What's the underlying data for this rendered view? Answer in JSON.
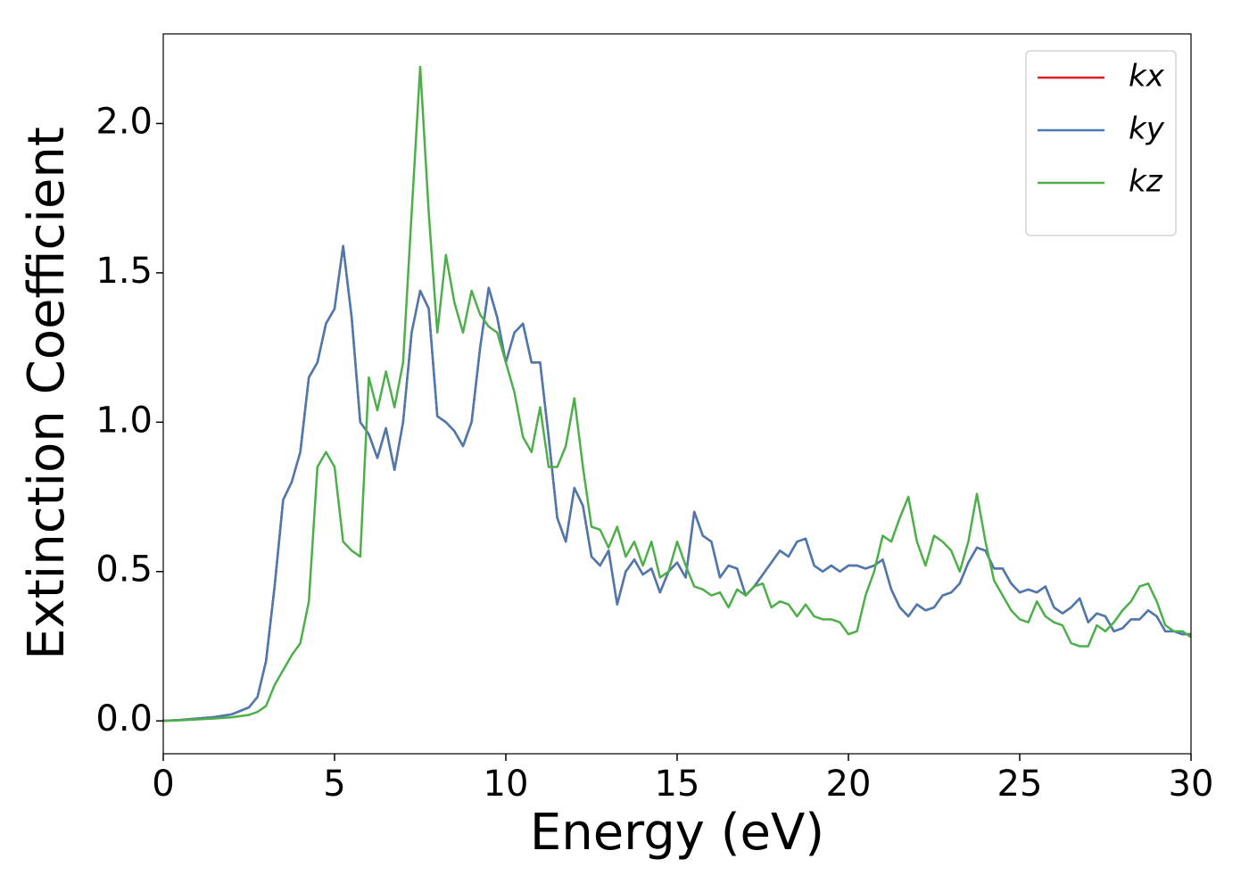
{
  "chart_data": {
    "type": "line",
    "xlabel": "Energy (eV)",
    "ylabel": "Extinction Coefficient",
    "xlim": [
      0,
      30
    ],
    "ylim": [
      -0.11,
      2.3
    ],
    "xticks": [
      0,
      5,
      10,
      15,
      20,
      25,
      30
    ],
    "yticks": [
      {
        "value": 0,
        "label": "0.0"
      },
      0.5,
      {
        "value": 1,
        "label": "1.0"
      },
      1.5,
      {
        "value": 2,
        "label": "2.0"
      }
    ],
    "legend": "upper right",
    "x": [
      0,
      0.5,
      1,
      1.5,
      2,
      2.5,
      2.75,
      3,
      3.25,
      3.5,
      3.75,
      4,
      4.25,
      4.5,
      4.75,
      5,
      5.25,
      5.5,
      5.75,
      6,
      6.25,
      6.5,
      6.75,
      7,
      7.25,
      7.5,
      7.75,
      8,
      8.25,
      8.5,
      8.75,
      9,
      9.25,
      9.5,
      9.75,
      10,
      10.25,
      10.5,
      10.75,
      11,
      11.25,
      11.5,
      11.75,
      12,
      12.25,
      12.5,
      12.75,
      13,
      13.25,
      13.5,
      13.75,
      14,
      14.25,
      14.5,
      14.75,
      15,
      15.25,
      15.5,
      15.75,
      16,
      16.25,
      16.5,
      16.75,
      17,
      17.25,
      17.5,
      17.75,
      18,
      18.25,
      18.5,
      18.75,
      19,
      19.25,
      19.5,
      19.75,
      20,
      20.25,
      20.5,
      20.75,
      21,
      21.25,
      21.5,
      21.75,
      22,
      22.25,
      22.5,
      22.75,
      23,
      23.25,
      23.5,
      23.75,
      24,
      24.25,
      24.5,
      24.75,
      25,
      25.25,
      25.5,
      25.75,
      26,
      26.25,
      26.5,
      26.75,
      27,
      27.25,
      27.5,
      27.75,
      28,
      28.25,
      28.5,
      28.75,
      29,
      29.25,
      29.5,
      29.75,
      30
    ],
    "series": [
      {
        "name": "kx",
        "color": "#e41a1c",
        "values": [
          0,
          0.003,
          0.008,
          0.013,
          0.022,
          0.045,
          0.08,
          0.2,
          0.45,
          0.74,
          0.8,
          0.9,
          1.15,
          1.2,
          1.33,
          1.38,
          1.59,
          1.35,
          1.0,
          0.96,
          0.88,
          0.98,
          0.84,
          1.0,
          1.3,
          1.44,
          1.38,
          1.02,
          1.0,
          0.97,
          0.92,
          1.0,
          1.25,
          1.45,
          1.35,
          1.2,
          1.3,
          1.33,
          1.2,
          1.2,
          0.95,
          0.68,
          0.6,
          0.78,
          0.72,
          0.55,
          0.52,
          0.57,
          0.39,
          0.5,
          0.54,
          0.49,
          0.51,
          0.43,
          0.5,
          0.53,
          0.48,
          0.7,
          0.62,
          0.6,
          0.48,
          0.52,
          0.51,
          0.42,
          0.45,
          0.49,
          0.53,
          0.57,
          0.55,
          0.6,
          0.61,
          0.52,
          0.5,
          0.52,
          0.5,
          0.52,
          0.52,
          0.51,
          0.52,
          0.54,
          0.44,
          0.38,
          0.35,
          0.39,
          0.37,
          0.38,
          0.42,
          0.43,
          0.46,
          0.53,
          0.58,
          0.57,
          0.51,
          0.51,
          0.46,
          0.43,
          0.44,
          0.43,
          0.45,
          0.38,
          0.36,
          0.38,
          0.41,
          0.33,
          0.36,
          0.35,
          0.3,
          0.31,
          0.34,
          0.34,
          0.37,
          0.35,
          0.3,
          0.3,
          0.29,
          0.29
        ]
      },
      {
        "name": "ky",
        "color": "#4a7bb0",
        "values": [
          0,
          0.003,
          0.008,
          0.013,
          0.022,
          0.045,
          0.08,
          0.2,
          0.45,
          0.74,
          0.8,
          0.9,
          1.15,
          1.2,
          1.33,
          1.38,
          1.59,
          1.35,
          1.0,
          0.96,
          0.88,
          0.98,
          0.84,
          1.0,
          1.3,
          1.44,
          1.38,
          1.02,
          1.0,
          0.97,
          0.92,
          1.0,
          1.25,
          1.45,
          1.35,
          1.2,
          1.3,
          1.33,
          1.2,
          1.2,
          0.95,
          0.68,
          0.6,
          0.78,
          0.72,
          0.55,
          0.52,
          0.57,
          0.39,
          0.5,
          0.54,
          0.49,
          0.51,
          0.43,
          0.5,
          0.53,
          0.48,
          0.7,
          0.62,
          0.6,
          0.48,
          0.52,
          0.51,
          0.42,
          0.45,
          0.49,
          0.53,
          0.57,
          0.55,
          0.6,
          0.61,
          0.52,
          0.5,
          0.52,
          0.5,
          0.52,
          0.52,
          0.51,
          0.52,
          0.54,
          0.44,
          0.38,
          0.35,
          0.39,
          0.37,
          0.38,
          0.42,
          0.43,
          0.46,
          0.53,
          0.58,
          0.57,
          0.51,
          0.51,
          0.46,
          0.43,
          0.44,
          0.43,
          0.45,
          0.38,
          0.36,
          0.38,
          0.41,
          0.33,
          0.36,
          0.35,
          0.3,
          0.31,
          0.34,
          0.34,
          0.37,
          0.35,
          0.3,
          0.3,
          0.29,
          0.29
        ]
      },
      {
        "name": "kz",
        "color": "#4daf4a",
        "values": [
          0,
          0.002,
          0.005,
          0.008,
          0.012,
          0.02,
          0.03,
          0.05,
          0.12,
          0.17,
          0.22,
          0.26,
          0.4,
          0.85,
          0.9,
          0.85,
          0.6,
          0.57,
          0.55,
          1.15,
          1.04,
          1.17,
          1.05,
          1.2,
          1.7,
          2.19,
          1.7,
          1.3,
          1.56,
          1.4,
          1.3,
          1.44,
          1.36,
          1.32,
          1.3,
          1.2,
          1.1,
          0.95,
          0.9,
          1.05,
          0.85,
          0.85,
          0.92,
          1.08,
          0.85,
          0.65,
          0.64,
          0.58,
          0.65,
          0.55,
          0.6,
          0.52,
          0.6,
          0.48,
          0.5,
          0.6,
          0.52,
          0.45,
          0.44,
          0.42,
          0.43,
          0.38,
          0.44,
          0.42,
          0.45,
          0.46,
          0.38,
          0.4,
          0.39,
          0.35,
          0.39,
          0.35,
          0.34,
          0.34,
          0.33,
          0.29,
          0.3,
          0.42,
          0.5,
          0.62,
          0.6,
          0.68,
          0.75,
          0.6,
          0.52,
          0.62,
          0.6,
          0.57,
          0.5,
          0.6,
          0.76,
          0.6,
          0.47,
          0.42,
          0.37,
          0.34,
          0.33,
          0.4,
          0.35,
          0.33,
          0.32,
          0.26,
          0.25,
          0.25,
          0.32,
          0.3,
          0.33,
          0.37,
          0.4,
          0.45,
          0.46,
          0.4,
          0.32,
          0.3,
          0.3,
          0.28
        ]
      }
    ]
  }
}
